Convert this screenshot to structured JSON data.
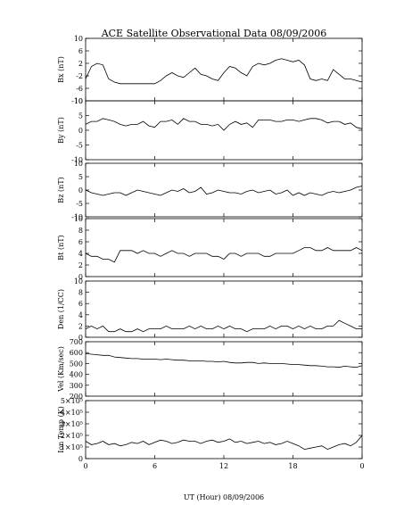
{
  "chart_data": {
    "type": "line",
    "title": "ACE Satellite Observational Data   08/09/2006",
    "xlabel": "UT (Hour)   08/09/2006",
    "x_ticks": [
      "0",
      "6",
      "12",
      "18",
      "0"
    ],
    "xlim": [
      0,
      24
    ],
    "line_color": "#000000",
    "panels": [
      {
        "ylabel": "Bx (nT)",
        "ylim": [
          -10,
          10
        ],
        "yticks": [
          -10,
          -6,
          -2,
          2,
          6,
          10
        ],
        "ytick_labels": [
          "-10",
          "-6",
          "-2",
          "2",
          "6",
          "10"
        ],
        "x": [
          0,
          0.5,
          1,
          1.5,
          2,
          2.5,
          3,
          3.5,
          4,
          4.5,
          5,
          5.5,
          6,
          6.5,
          7,
          7.5,
          8,
          8.5,
          9,
          9.5,
          10,
          10.5,
          11,
          11.5,
          12,
          12.5,
          13,
          13.5,
          14,
          14.5,
          15,
          15.5,
          16,
          16.5,
          17,
          17.5,
          18,
          18.5,
          19,
          19.5,
          20,
          20.5,
          21,
          21.5,
          22,
          22.5,
          23,
          23.5,
          24
        ],
        "y": [
          -3,
          1,
          2,
          1.5,
          -3,
          -4,
          -4.5,
          -4.5,
          -4.5,
          -4.5,
          -4.5,
          -4.5,
          -4.5,
          -3.5,
          -2,
          -1,
          -2,
          -2.5,
          -1,
          0.5,
          -1.5,
          -2,
          -3,
          -3.5,
          -1,
          1,
          0.5,
          -1,
          -2,
          1,
          2,
          1.5,
          2,
          3,
          3.5,
          3,
          2.5,
          3,
          1.5,
          -3,
          -3.5,
          -3,
          -3.5,
          0,
          -1.5,
          -3,
          -3,
          -3.5,
          -4
        ]
      },
      {
        "ylabel": "By (nT)",
        "ylim": [
          -10,
          10
        ],
        "yticks": [
          -10,
          -5,
          0,
          5,
          10
        ],
        "ytick_labels": [
          "-10",
          "-5",
          "0",
          "5",
          "10"
        ],
        "x": [
          0,
          0.5,
          1,
          1.5,
          2,
          2.5,
          3,
          3.5,
          4,
          4.5,
          5,
          5.5,
          6,
          6.5,
          7,
          7.5,
          8,
          8.5,
          9,
          9.5,
          10,
          10.5,
          11,
          11.5,
          12,
          12.5,
          13,
          13.5,
          14,
          14.5,
          15,
          15.5,
          16,
          16.5,
          17,
          17.5,
          18,
          18.5,
          19,
          19.5,
          20,
          20.5,
          21,
          21.5,
          22,
          22.5,
          23,
          23.5,
          24
        ],
        "y": [
          2,
          3,
          3,
          4,
          3.5,
          3,
          2,
          1.5,
          2,
          2,
          3,
          1.5,
          1,
          3,
          3,
          3.5,
          2,
          4,
          3,
          3,
          2,
          2,
          1.5,
          2,
          0,
          2,
          3,
          2,
          2.5,
          1,
          3.5,
          3.5,
          3.5,
          3,
          3,
          3.5,
          3.5,
          3,
          3.5,
          4,
          4,
          3.5,
          2.5,
          3,
          3,
          2,
          2.5,
          1,
          0.5
        ]
      },
      {
        "ylabel": "Bz (nT)",
        "ylim": [
          -10,
          10
        ],
        "yticks": [
          -10,
          -5,
          0,
          5,
          10
        ],
        "ytick_labels": [
          "-10",
          "-5",
          "0",
          "5",
          "10"
        ],
        "x": [
          0,
          0.5,
          1,
          1.5,
          2,
          2.5,
          3,
          3.5,
          4,
          4.5,
          5,
          5.5,
          6,
          6.5,
          7,
          7.5,
          8,
          8.5,
          9,
          9.5,
          10,
          10.5,
          11,
          11.5,
          12,
          12.5,
          13,
          13.5,
          14,
          14.5,
          15,
          15.5,
          16,
          16.5,
          17,
          17.5,
          18,
          18.5,
          19,
          19.5,
          20,
          20.5,
          21,
          21.5,
          22,
          22.5,
          23,
          23.5,
          24
        ],
        "y": [
          0,
          -1,
          -1.5,
          -2,
          -1.5,
          -1,
          -1,
          -2,
          -1,
          0,
          -0.5,
          -1,
          -1.5,
          -2,
          -1,
          0,
          -0.5,
          0.5,
          -1,
          -0.5,
          1,
          -1.5,
          -1,
          0,
          -0.5,
          -1,
          -1,
          -1.5,
          -0.5,
          0,
          -1,
          -0.5,
          0,
          -1.5,
          -1,
          0,
          -2,
          -1,
          -2,
          -1,
          -1.5,
          -2,
          -1,
          -0.5,
          -1,
          -0.5,
          0,
          1,
          1.5
        ]
      },
      {
        "ylabel": "Bt (nT)",
        "ylim": [
          0,
          10
        ],
        "yticks": [
          0,
          2,
          4,
          6,
          8,
          10
        ],
        "ytick_labels": [
          "0",
          "2",
          "4",
          "6",
          "8",
          "10"
        ],
        "x": [
          0,
          0.5,
          1,
          1.5,
          2,
          2.5,
          3,
          3.5,
          4,
          4.5,
          5,
          5.5,
          6,
          6.5,
          7,
          7.5,
          8,
          8.5,
          9,
          9.5,
          10,
          10.5,
          11,
          11.5,
          12,
          12.5,
          13,
          13.5,
          14,
          14.5,
          15,
          15.5,
          16,
          16.5,
          17,
          17.5,
          18,
          18.5,
          19,
          19.5,
          20,
          20.5,
          21,
          21.5,
          22,
          22.5,
          23,
          23.5,
          24
        ],
        "y": [
          4,
          3.5,
          3.5,
          3,
          3,
          2.5,
          4.5,
          4.5,
          4.5,
          4,
          4.5,
          4,
          4,
          3.5,
          4,
          4.5,
          4,
          4,
          3.5,
          4,
          4,
          4,
          3.5,
          3.5,
          3,
          4,
          4,
          3.5,
          4,
          4,
          4,
          3.5,
          3.5,
          4,
          4,
          4,
          4,
          4.5,
          5,
          5,
          4.5,
          4.5,
          5,
          4.5,
          4.5,
          4.5,
          4.5,
          5,
          4.5
        ]
      },
      {
        "ylabel": "Den (1/CC)",
        "ylim": [
          0,
          10
        ],
        "yticks": [
          0,
          2,
          4,
          6,
          8,
          10
        ],
        "ytick_labels": [
          "0",
          "2",
          "4",
          "6",
          "8",
          "10"
        ],
        "x": [
          0,
          0.5,
          1,
          1.5,
          2,
          2.5,
          3,
          3.5,
          4,
          4.5,
          5,
          5.5,
          6,
          6.5,
          7,
          7.5,
          8,
          8.5,
          9,
          9.5,
          10,
          10.5,
          11,
          11.5,
          12,
          12.5,
          13,
          13.5,
          14,
          14.5,
          15,
          15.5,
          16,
          16.5,
          17,
          17.5,
          18,
          18.5,
          19,
          19.5,
          20,
          20.5,
          21,
          21.5,
          22,
          22.5,
          23,
          23.5,
          24
        ],
        "y": [
          1.5,
          2,
          1.5,
          2,
          1,
          1,
          1.5,
          1,
          1,
          1.5,
          1,
          1.5,
          1.5,
          1.5,
          2,
          1.5,
          1.5,
          1.5,
          2,
          1.5,
          2,
          1.5,
          1.5,
          2,
          1.5,
          2,
          1.5,
          1.5,
          1,
          1.5,
          1.5,
          1.5,
          2,
          1.5,
          2,
          2,
          1.5,
          2,
          1.5,
          2,
          1.5,
          1.5,
          2,
          2,
          3,
          2.5,
          2,
          1.5,
          1.5
        ]
      },
      {
        "ylabel": "Vel (Km/sec)",
        "ylim": [
          200,
          700
        ],
        "yticks": [
          200,
          300,
          400,
          500,
          600,
          700
        ],
        "ytick_labels": [
          "200",
          "300",
          "400",
          "500",
          "600",
          "700"
        ],
        "x": [
          0,
          0.5,
          1,
          1.5,
          2,
          2.5,
          3,
          3.5,
          4,
          4.5,
          5,
          5.5,
          6,
          6.5,
          7,
          7.5,
          8,
          8.5,
          9,
          9.5,
          10,
          10.5,
          11,
          11.5,
          12,
          12.5,
          13,
          13.5,
          14,
          14.5,
          15,
          15.5,
          16,
          16.5,
          17,
          17.5,
          18,
          18.5,
          19,
          19.5,
          20,
          20.5,
          21,
          21.5,
          22,
          22.5,
          23,
          23.5,
          24
        ],
        "y": [
          590,
          585,
          580,
          575,
          575,
          560,
          555,
          550,
          545,
          545,
          540,
          540,
          540,
          535,
          540,
          535,
          530,
          530,
          525,
          525,
          525,
          520,
          520,
          515,
          520,
          510,
          505,
          505,
          510,
          510,
          500,
          505,
          500,
          500,
          500,
          495,
          490,
          490,
          485,
          480,
          480,
          475,
          470,
          470,
          465,
          475,
          470,
          465,
          480
        ]
      },
      {
        "ylabel": "Ion Temp (K)",
        "ylim": [
          0,
          500000
        ],
        "yticks": [
          0,
          100000,
          200000,
          300000,
          400000,
          500000
        ],
        "ytick_labels": [
          "0",
          "1×10⁵",
          "2×10⁵",
          "3×10⁵",
          "4×10⁵",
          "5×10⁵"
        ],
        "x": [
          0,
          0.5,
          1,
          1.5,
          2,
          2.5,
          3,
          3.5,
          4,
          4.5,
          5,
          5.5,
          6,
          6.5,
          7,
          7.5,
          8,
          8.5,
          9,
          9.5,
          10,
          10.5,
          11,
          11.5,
          12,
          12.5,
          13,
          13.5,
          14,
          14.5,
          15,
          15.5,
          16,
          16.5,
          17,
          17.5,
          18,
          18.5,
          19,
          19.5,
          20,
          20.5,
          21,
          21.5,
          22,
          22.5,
          23,
          23.5,
          24
        ],
        "y": [
          150000,
          120000,
          130000,
          150000,
          120000,
          130000,
          110000,
          120000,
          140000,
          130000,
          150000,
          120000,
          140000,
          160000,
          150000,
          130000,
          140000,
          160000,
          150000,
          150000,
          130000,
          150000,
          160000,
          140000,
          150000,
          170000,
          140000,
          150000,
          130000,
          140000,
          150000,
          130000,
          140000,
          120000,
          130000,
          150000,
          130000,
          110000,
          80000,
          90000,
          100000,
          110000,
          80000,
          100000,
          120000,
          130000,
          110000,
          140000,
          200000
        ]
      }
    ]
  }
}
